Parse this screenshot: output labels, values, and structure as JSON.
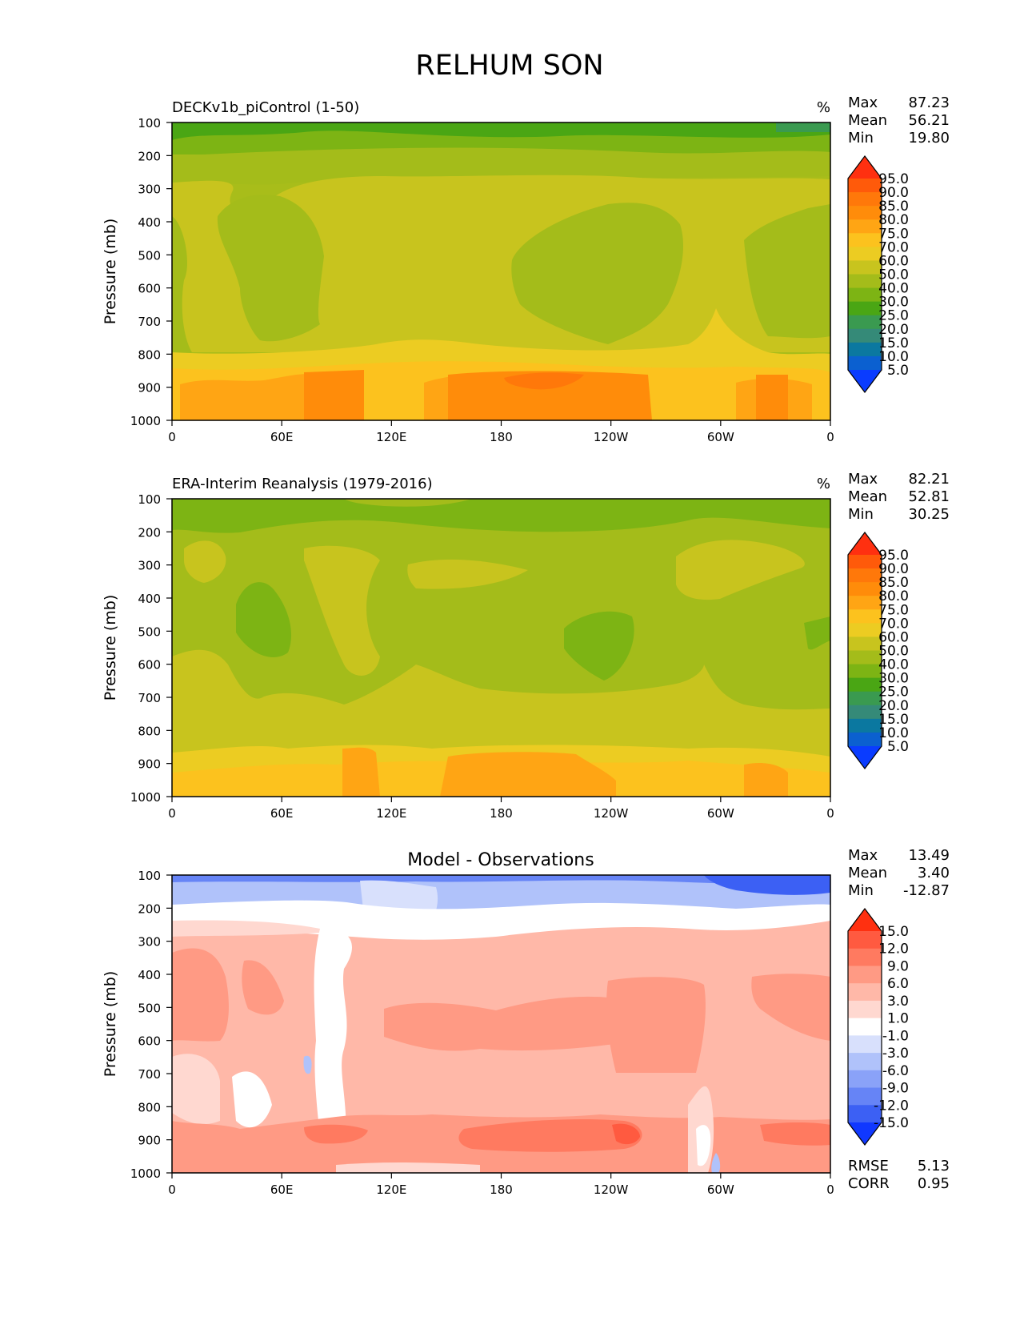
{
  "title": "RELHUM SON",
  "x_ticks": [
    "0",
    "60E",
    "120E",
    "180",
    "120W",
    "60W",
    "0"
  ],
  "y_ticks": [
    "100",
    "200",
    "300",
    "400",
    "500",
    "600",
    "700",
    "800",
    "900",
    "1000"
  ],
  "ylabel": "Pressure (mb)",
  "stat_labels": {
    "max": "Max",
    "mean": "Mean",
    "min": "Min",
    "rmse": "RMSE",
    "corr": "CORR"
  },
  "panels": [
    {
      "title": "DECKv1b_piControl (1-50)",
      "units": "%",
      "stats": {
        "max": "87.23",
        "mean": "56.21",
        "min": "19.80"
      }
    },
    {
      "title": "ERA-Interim Reanalysis (1979-2016)",
      "units": "%",
      "stats": {
        "max": "82.21",
        "mean": "52.81",
        "min": "30.25"
      }
    },
    {
      "title": "Model - Observations",
      "units": "",
      "stats": {
        "max": "13.49",
        "mean": "3.40",
        "min": "-12.87",
        "rmse": "5.13",
        "corr": "0.95"
      }
    }
  ],
  "colorbars": {
    "absolute": {
      "labels": [
        "95.0",
        "90.0",
        "85.0",
        "80.0",
        "75.0",
        "70.0",
        "60.0",
        "50.0",
        "40.0",
        "30.0",
        "25.0",
        "20.0",
        "15.0",
        "10.0",
        "5.0"
      ],
      "colors": [
        "#ff3010",
        "#ff5a0a",
        "#ff780a",
        "#ff8c0a",
        "#ffa514",
        "#fcc21e",
        "#eccc22",
        "#c8c41e",
        "#a4bc1a",
        "#7db414",
        "#4aa614",
        "#3a9a50",
        "#358a78",
        "#0b78a0",
        "#0b60d0",
        "#0a3cff"
      ]
    },
    "difference": {
      "labels": [
        "15.0",
        "12.0",
        "9.0",
        "6.0",
        "3.0",
        "1.0",
        "-1.0",
        "-3.0",
        "-6.0",
        "-9.0",
        "-12.0",
        "-15.0"
      ],
      "colors": [
        "#ff3010",
        "#ff5a40",
        "#ff7a60",
        "#ff9a84",
        "#ffb8a8",
        "#ffd8d0",
        "#ffffff",
        "#d8e0fc",
        "#b0c2fa",
        "#8aa2f8",
        "#6684f6",
        "#3c60f4",
        "#1038ff"
      ]
    }
  },
  "chart_data": [
    {
      "type": "heatmap",
      "title": "DECKv1b_piControl (1-50)",
      "units": "%",
      "x": [
        "0",
        "60E",
        "120E",
        "180",
        "120W",
        "60W",
        "0"
      ],
      "y": [
        100,
        200,
        300,
        400,
        500,
        600,
        700,
        800,
        900,
        1000
      ],
      "ylabel": "Pressure (mb)",
      "ylim": [
        1000,
        100
      ],
      "levels": [
        5,
        10,
        15,
        20,
        25,
        30,
        40,
        50,
        60,
        70,
        75,
        80,
        85,
        90,
        95
      ],
      "max": 87.23,
      "mean": 56.21,
      "min": 19.8
    },
    {
      "type": "heatmap",
      "title": "ERA-Interim Reanalysis (1979-2016)",
      "units": "%",
      "x": [
        "0",
        "60E",
        "120E",
        "180",
        "120W",
        "60W",
        "0"
      ],
      "y": [
        100,
        200,
        300,
        400,
        500,
        600,
        700,
        800,
        900,
        1000
      ],
      "ylabel": "Pressure (mb)",
      "ylim": [
        1000,
        100
      ],
      "levels": [
        5,
        10,
        15,
        20,
        25,
        30,
        40,
        50,
        60,
        70,
        75,
        80,
        85,
        90,
        95
      ],
      "max": 82.21,
      "mean": 52.81,
      "min": 30.25
    },
    {
      "type": "heatmap",
      "title": "Model - Observations",
      "x": [
        "0",
        "60E",
        "120E",
        "180",
        "120W",
        "60W",
        "0"
      ],
      "y": [
        100,
        200,
        300,
        400,
        500,
        600,
        700,
        800,
        900,
        1000
      ],
      "ylabel": "Pressure (mb)",
      "ylim": [
        1000,
        100
      ],
      "levels": [
        -15,
        -12,
        -9,
        -6,
        -3,
        -1,
        1,
        3,
        6,
        9,
        12,
        15
      ],
      "max": 13.49,
      "mean": 3.4,
      "min": -12.87,
      "rmse": 5.13,
      "corr": 0.95
    }
  ]
}
